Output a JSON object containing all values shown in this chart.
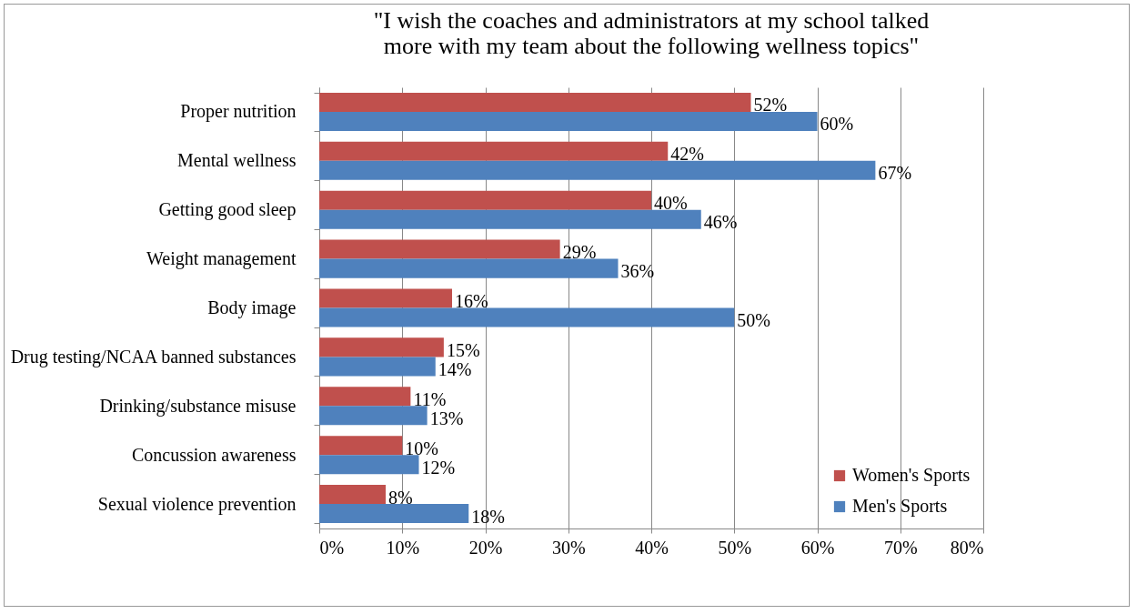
{
  "chart_data": {
    "type": "bar",
    "orientation": "horizontal",
    "title": "\"I wish the coaches and administrators at my school talked more with my team about the following wellness topics\"",
    "categories": [
      "Proper nutrition",
      "Mental wellness",
      "Getting good sleep",
      "Weight management",
      "Body image",
      "Drug testing/NCAA banned substances",
      "Drinking/substance misuse",
      "Concussion awareness",
      "Sexual violence prevention"
    ],
    "series": [
      {
        "name": "Women's Sports",
        "color": "#c0504d",
        "values": [
          52,
          42,
          40,
          29,
          16,
          15,
          11,
          10,
          8
        ],
        "value_labels": [
          "52%",
          "42%",
          "40%",
          "29%",
          "16%",
          "15%",
          "11%",
          "10%",
          "8%"
        ]
      },
      {
        "name": "Men's Sports",
        "color": "#4f81bd",
        "values": [
          60,
          67,
          46,
          36,
          50,
          14,
          13,
          12,
          18
        ],
        "value_labels": [
          "60%",
          "67%",
          "46%",
          "36%",
          "50%",
          "14%",
          "13%",
          "12%",
          "18%"
        ]
      }
    ],
    "xlim": [
      0,
      80
    ],
    "xticks": [
      {
        "value": 0,
        "label": "0%"
      },
      {
        "value": 10,
        "label": "10%"
      },
      {
        "value": 20,
        "label": "20%"
      },
      {
        "value": 30,
        "label": "30%"
      },
      {
        "value": 40,
        "label": "40%"
      },
      {
        "value": 50,
        "label": "50%"
      },
      {
        "value": 60,
        "label": "60%"
      },
      {
        "value": 70,
        "label": "70%"
      },
      {
        "value": 80,
        "label": "80%"
      }
    ],
    "grid": "x",
    "legend": "bottom right"
  }
}
